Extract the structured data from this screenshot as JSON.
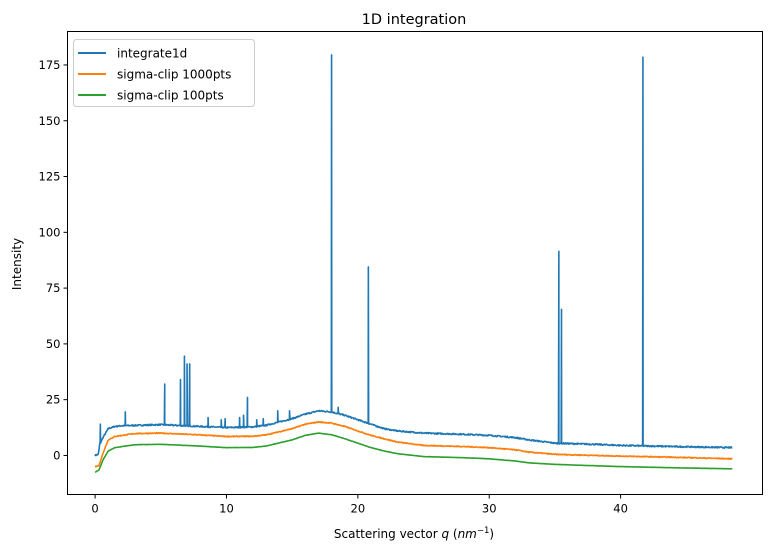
{
  "chart_data": {
    "type": "line",
    "title": "1D integration",
    "xlabel": "Scattering vector q (nm^-1)",
    "xlabel_parts": {
      "prefix": "Scattering vector ",
      "var": "q",
      "unit_open": " (",
      "unit": "nm",
      "exp": "−1",
      "unit_close": ")"
    },
    "ylabel": "Intensity",
    "xlim": [
      -2.1,
      50.8
    ],
    "ylim": [
      -17.5,
      190
    ],
    "xticks": [
      0,
      10,
      20,
      30,
      40
    ],
    "yticks": [
      0,
      25,
      50,
      75,
      100,
      125,
      150,
      175
    ],
    "grid": false,
    "legend_placement": "top-left",
    "series": [
      {
        "name": "integrate1d",
        "color": "#1f77b4",
        "baseline": [
          [
            0,
            0
          ],
          [
            0.25,
            0.5
          ],
          [
            0.35,
            5
          ],
          [
            0.6,
            8
          ],
          [
            1,
            12
          ],
          [
            1.5,
            13
          ],
          [
            2,
            13.3
          ],
          [
            5,
            13.8
          ],
          [
            8,
            13
          ],
          [
            10,
            12.5
          ],
          [
            12,
            12.8
          ],
          [
            13,
            13.5
          ],
          [
            15,
            16.5
          ],
          [
            16,
            18.5
          ],
          [
            17,
            20
          ],
          [
            18,
            19.5
          ],
          [
            19,
            18
          ],
          [
            20,
            16
          ],
          [
            21,
            14
          ],
          [
            22,
            12
          ],
          [
            23,
            11
          ],
          [
            25,
            10
          ],
          [
            28,
            9.5
          ],
          [
            30,
            9
          ],
          [
            32,
            8
          ],
          [
            33,
            7
          ],
          [
            35,
            5.5
          ],
          [
            38,
            5
          ],
          [
            40,
            4.5
          ],
          [
            44,
            4
          ],
          [
            48.5,
            3.5
          ]
        ],
        "peaks": [
          [
            0.4,
            14
          ],
          [
            2.3,
            19.5
          ],
          [
            5.3,
            32
          ],
          [
            6.5,
            34
          ],
          [
            6.8,
            44.5
          ],
          [
            7.0,
            41
          ],
          [
            7.2,
            41
          ],
          [
            8.6,
            17
          ],
          [
            9.6,
            16
          ],
          [
            9.9,
            16.5
          ],
          [
            11.0,
            17
          ],
          [
            11.3,
            18
          ],
          [
            11.6,
            26
          ],
          [
            12.3,
            16
          ],
          [
            12.8,
            16.5
          ],
          [
            13.9,
            20
          ],
          [
            14.8,
            20
          ],
          [
            18.0,
            179.5
          ],
          [
            18.5,
            21.5
          ],
          [
            20.8,
            84.5
          ],
          [
            35.3,
            91.5
          ],
          [
            35.5,
            65.5
          ],
          [
            41.7,
            178.5
          ]
        ]
      },
      {
        "name": "sigma-clip 1000pts",
        "color": "#ff7f0e",
        "baseline": [
          [
            0,
            -5
          ],
          [
            0.3,
            -4.5
          ],
          [
            0.6,
            1
          ],
          [
            1,
            7
          ],
          [
            1.5,
            8.5
          ],
          [
            3,
            9.8
          ],
          [
            5,
            10
          ],
          [
            8,
            9.2
          ],
          [
            10,
            8.5
          ],
          [
            12,
            8.6
          ],
          [
            13,
            9.2
          ],
          [
            15,
            12
          ],
          [
            16,
            14
          ],
          [
            17,
            15
          ],
          [
            18,
            14.5
          ],
          [
            19,
            13
          ],
          [
            20,
            11
          ],
          [
            21,
            9
          ],
          [
            22,
            7.5
          ],
          [
            23,
            6
          ],
          [
            25,
            4.5
          ],
          [
            28,
            4
          ],
          [
            30,
            3.5
          ],
          [
            32,
            2.5
          ],
          [
            33,
            1.5
          ],
          [
            35,
            0.5
          ],
          [
            40,
            -0.3
          ],
          [
            44,
            -0.8
          ],
          [
            48.5,
            -1.5
          ]
        ],
        "peaks": []
      },
      {
        "name": "sigma-clip 100pts",
        "color": "#2ca02c",
        "baseline": [
          [
            0,
            -7.5
          ],
          [
            0.3,
            -6.5
          ],
          [
            0.6,
            -2
          ],
          [
            1,
            2
          ],
          [
            1.5,
            3.5
          ],
          [
            3,
            4.8
          ],
          [
            5,
            5
          ],
          [
            8,
            4.2
          ],
          [
            10,
            3.5
          ],
          [
            12,
            3.6
          ],
          [
            13,
            4.2
          ],
          [
            15,
            7
          ],
          [
            16,
            9
          ],
          [
            17,
            10
          ],
          [
            18,
            9.3
          ],
          [
            19,
            7.5
          ],
          [
            20,
            5.5
          ],
          [
            21,
            3.5
          ],
          [
            22,
            2
          ],
          [
            23,
            0.8
          ],
          [
            25,
            -0.5
          ],
          [
            28,
            -1
          ],
          [
            30,
            -1.5
          ],
          [
            32,
            -2.5
          ],
          [
            33,
            -3.3
          ],
          [
            35,
            -4
          ],
          [
            40,
            -5
          ],
          [
            44,
            -5.5
          ],
          [
            48.5,
            -6
          ]
        ],
        "peaks": []
      }
    ]
  }
}
